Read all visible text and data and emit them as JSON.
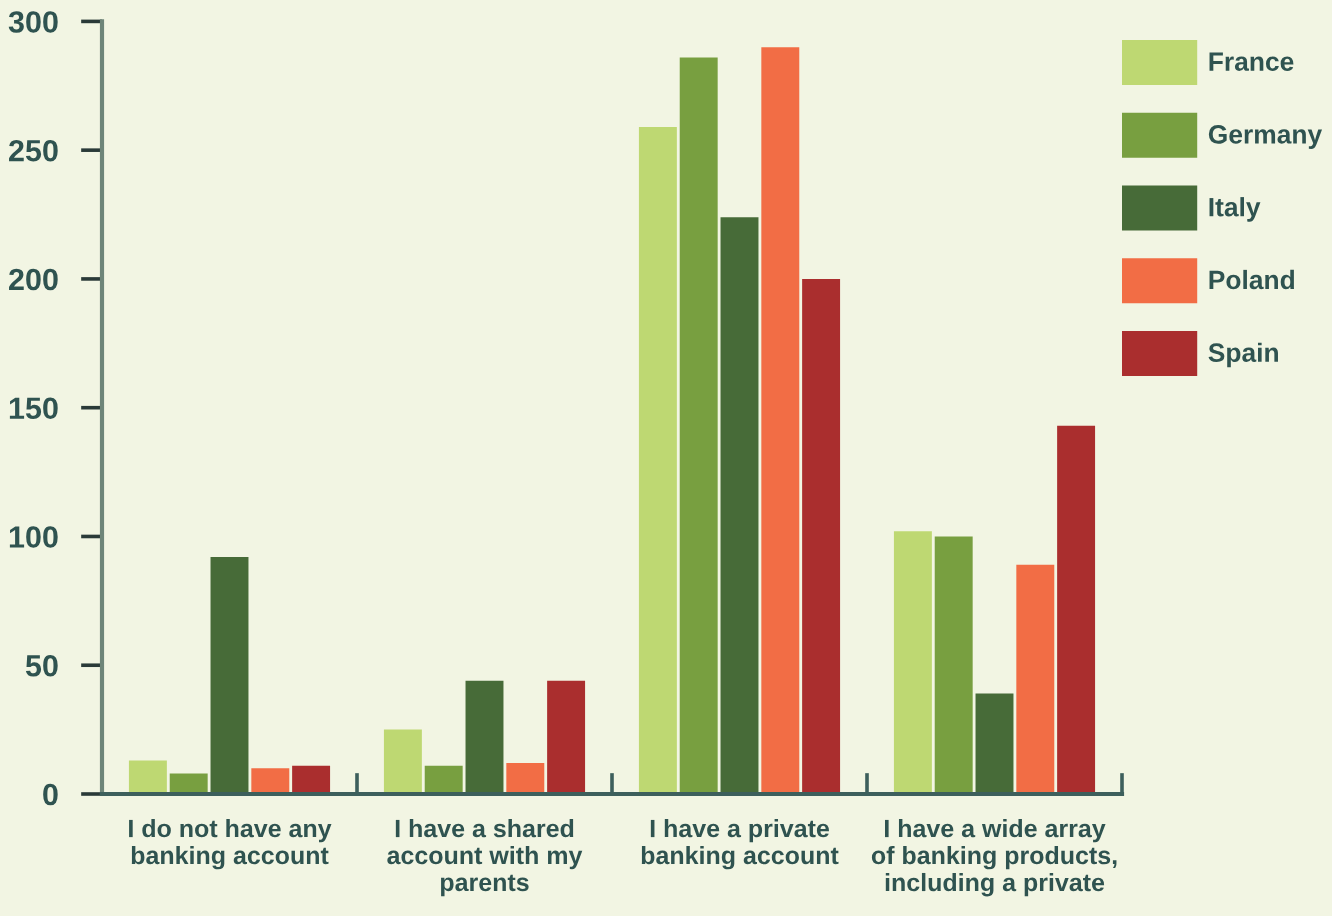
{
  "chart_data": {
    "type": "bar",
    "categories": [
      "I do not have any\nbanking account",
      "I have a shared\naccount with my\nparents",
      "I have a private\nbanking account",
      "I have a wide array\nof banking products,\nincluding a private"
    ],
    "series": [
      {
        "name": "France",
        "color": "#bed872",
        "values": [
          13,
          25,
          259,
          102
        ]
      },
      {
        "name": "Germany",
        "color": "#789f40",
        "values": [
          8,
          11,
          286,
          100
        ]
      },
      {
        "name": "Italy",
        "color": "#476b38",
        "values": [
          92,
          44,
          224,
          39
        ]
      },
      {
        "name": "Poland",
        "color": "#f26d45",
        "values": [
          10,
          12,
          290,
          89
        ]
      },
      {
        "name": "Spain",
        "color": "#aa2e2e",
        "values": [
          11,
          44,
          200,
          143
        ]
      }
    ],
    "ylim": [
      0,
      300
    ],
    "yticks": [
      0,
      50,
      100,
      150,
      200,
      250,
      300
    ],
    "legend": "top right"
  }
}
